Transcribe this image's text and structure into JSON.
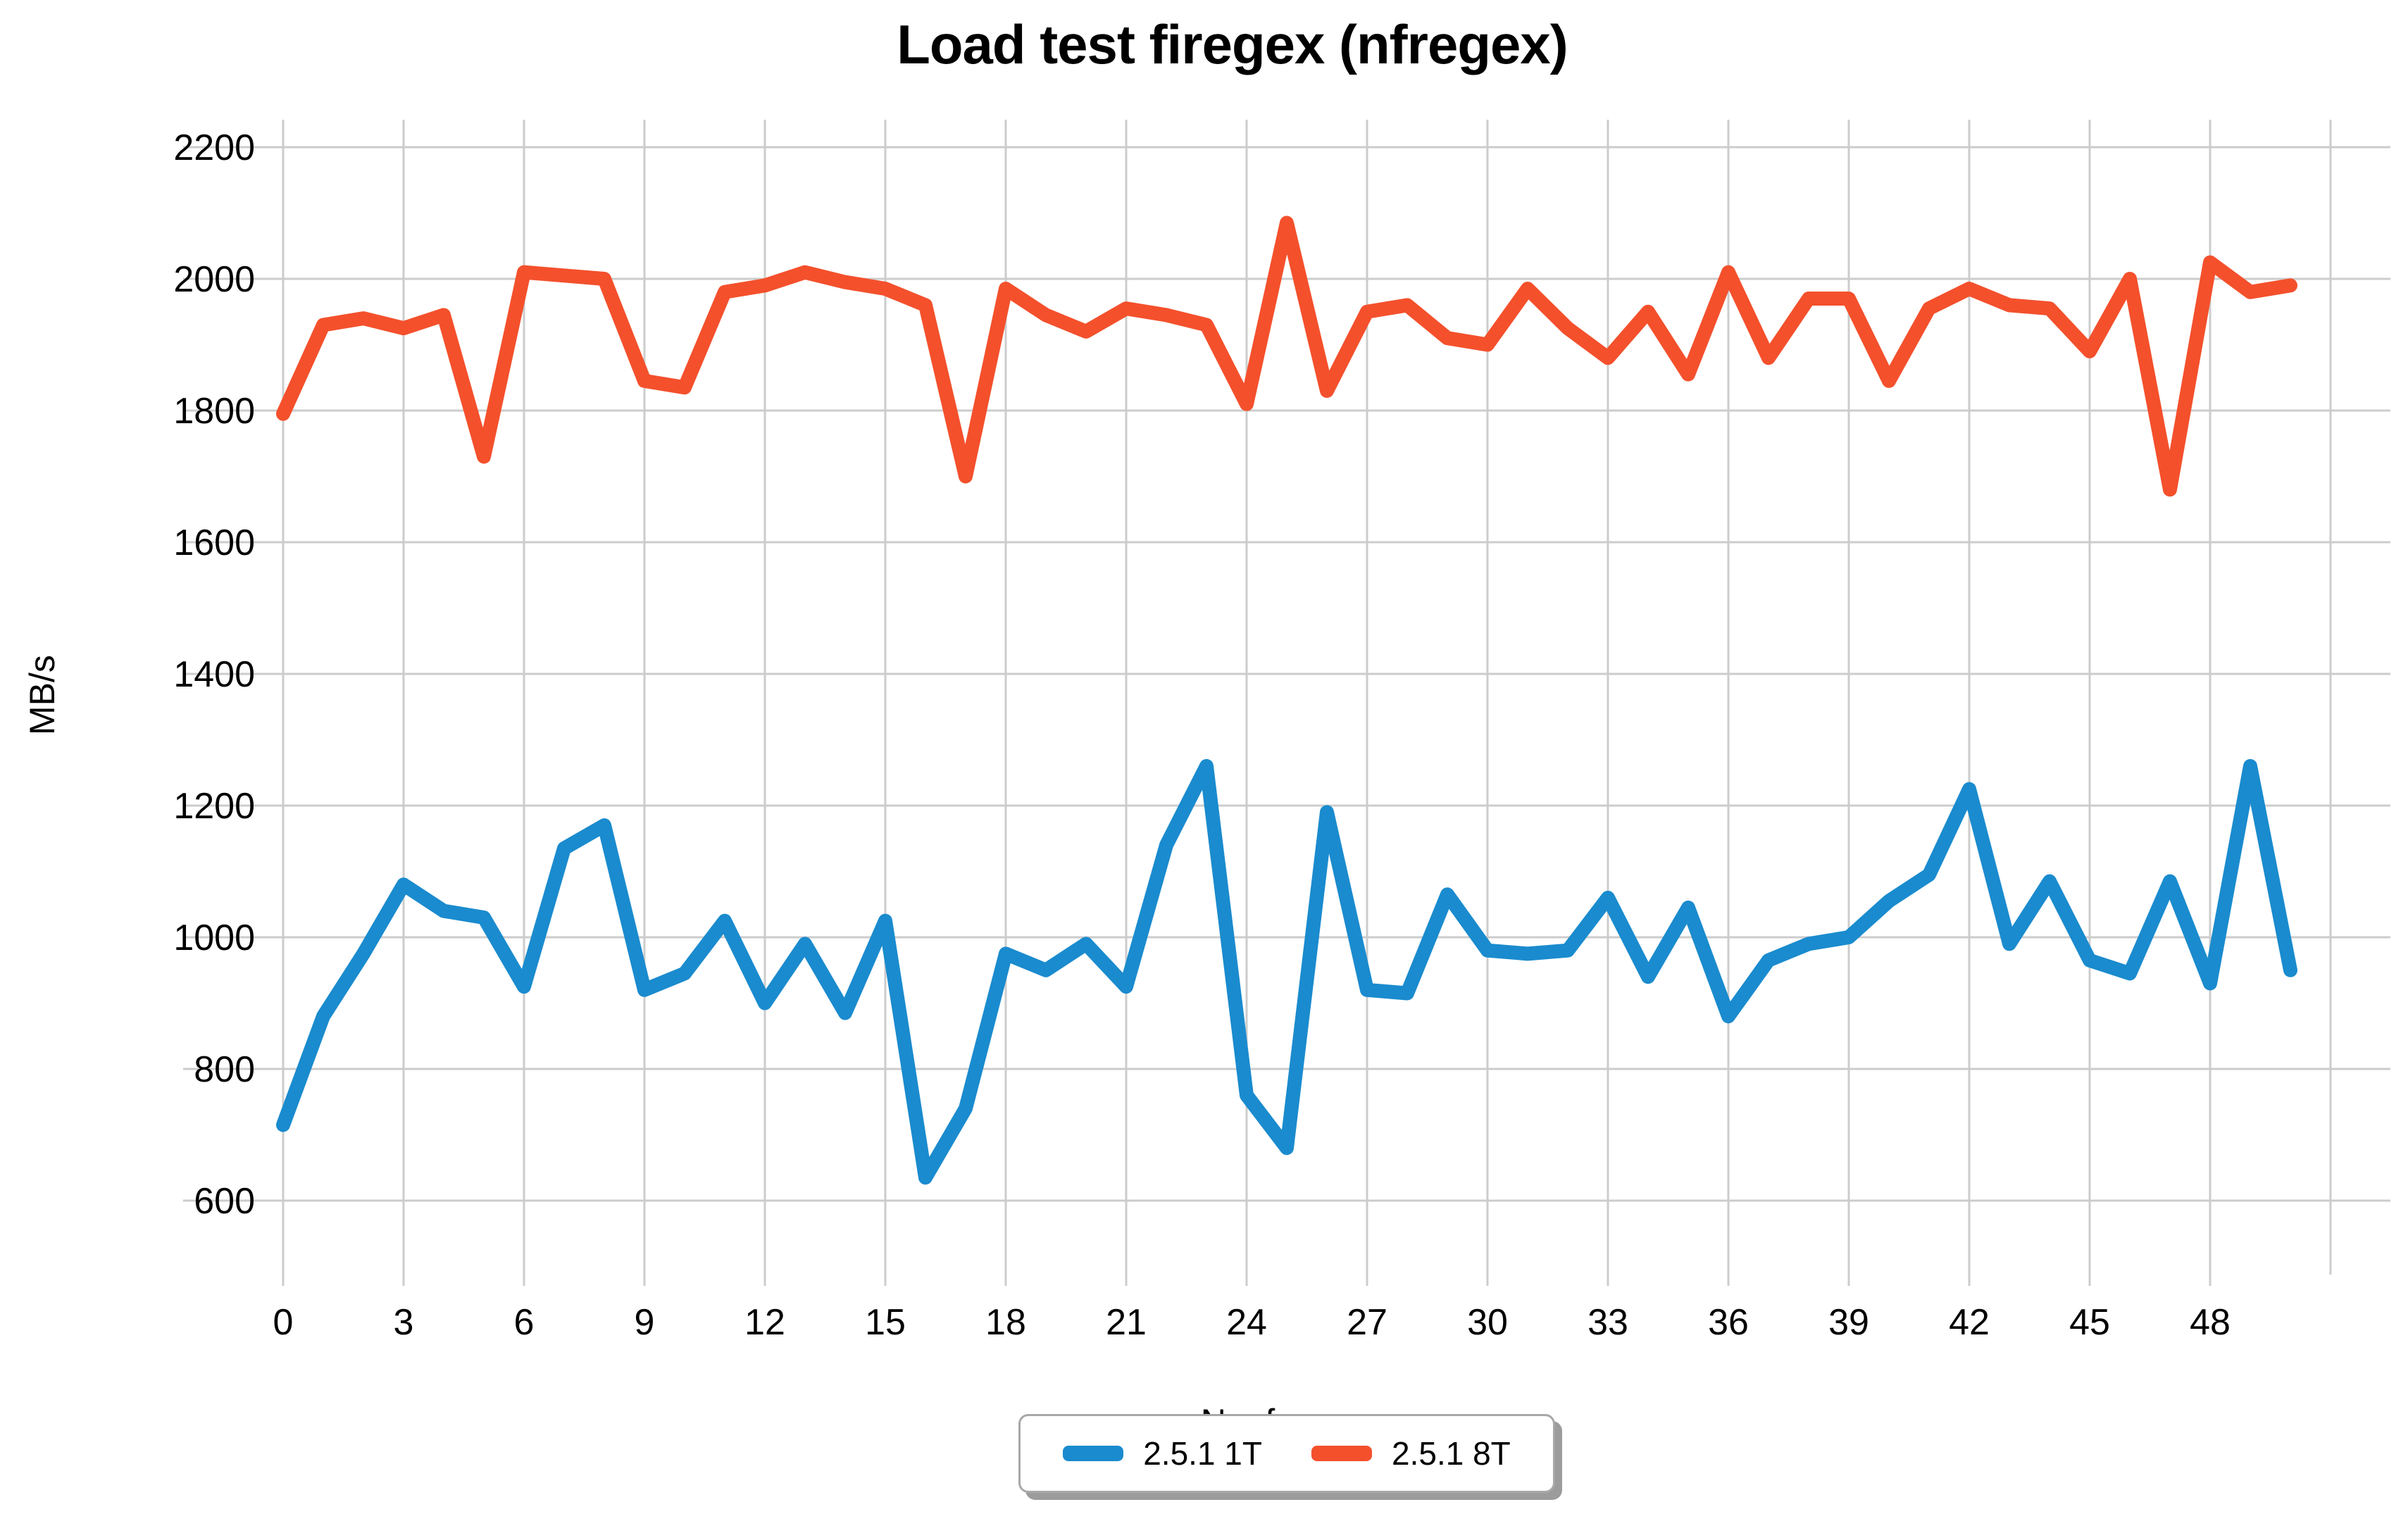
{
  "chart_data": {
    "type": "line",
    "title": "Load test firegex (nfregex)",
    "xlabel": "N. of regex",
    "ylabel": "MB/s",
    "x": [
      0,
      1,
      2,
      3,
      4,
      5,
      6,
      7,
      8,
      9,
      10,
      11,
      12,
      13,
      14,
      15,
      16,
      17,
      18,
      19,
      20,
      21,
      22,
      23,
      24,
      25,
      26,
      27,
      28,
      29,
      30,
      31,
      32,
      33,
      34,
      35,
      36,
      37,
      38,
      39,
      40,
      41,
      42,
      43,
      44,
      45,
      46,
      47,
      48,
      49,
      50
    ],
    "series": [
      {
        "name": "2.5.1 1T",
        "color": "#1a8bce",
        "values": [
          715,
          880,
          975,
          1080,
          1040,
          1030,
          925,
          1135,
          1170,
          920,
          945,
          1025,
          900,
          990,
          885,
          1025,
          635,
          740,
          975,
          950,
          990,
          925,
          1140,
          1260,
          760,
          680,
          1190,
          920,
          915,
          1065,
          980,
          975,
          980,
          1060,
          940,
          1045,
          880,
          965,
          990,
          1000,
          1055,
          1095,
          1225,
          990,
          1085,
          965,
          945,
          1085,
          930,
          1260,
          950
        ]
      },
      {
        "name": "2.5.1 8T",
        "color": "#f4502c",
        "values": [
          1795,
          1930,
          1940,
          1925,
          1945,
          1730,
          2010,
          2005,
          2000,
          1845,
          1835,
          1980,
          1990,
          2010,
          1995,
          1985,
          1960,
          1700,
          1985,
          1945,
          1920,
          1955,
          1945,
          1930,
          1810,
          2085,
          1830,
          1950,
          1960,
          1910,
          1900,
          1985,
          1925,
          1880,
          1950,
          1855,
          2010,
          1880,
          1970,
          1970,
          1845,
          1955,
          1985,
          1960,
          1955,
          1890,
          2000,
          1680,
          2025,
          1980,
          1990
        ]
      }
    ],
    "x_ticks": [
      0,
      3,
      6,
      9,
      12,
      15,
      18,
      21,
      24,
      27,
      30,
      33,
      36,
      39,
      42,
      45,
      48
    ],
    "y_ticks": [
      600,
      800,
      1000,
      1200,
      1400,
      1600,
      1800,
      2000,
      2200
    ],
    "xlim": [
      -2.5,
      52.5
    ],
    "ylim": [
      490,
      2240
    ],
    "grid": true,
    "grid_color": "#cccccc",
    "legend_position": "bottom-center",
    "text_color": "#000000",
    "background_color": "#ffffff"
  },
  "legend": {
    "items": [
      {
        "label": "2.5.1 1T",
        "color": "#1a8bce"
      },
      {
        "label": "2.5.1 8T",
        "color": "#f4502c"
      }
    ]
  }
}
